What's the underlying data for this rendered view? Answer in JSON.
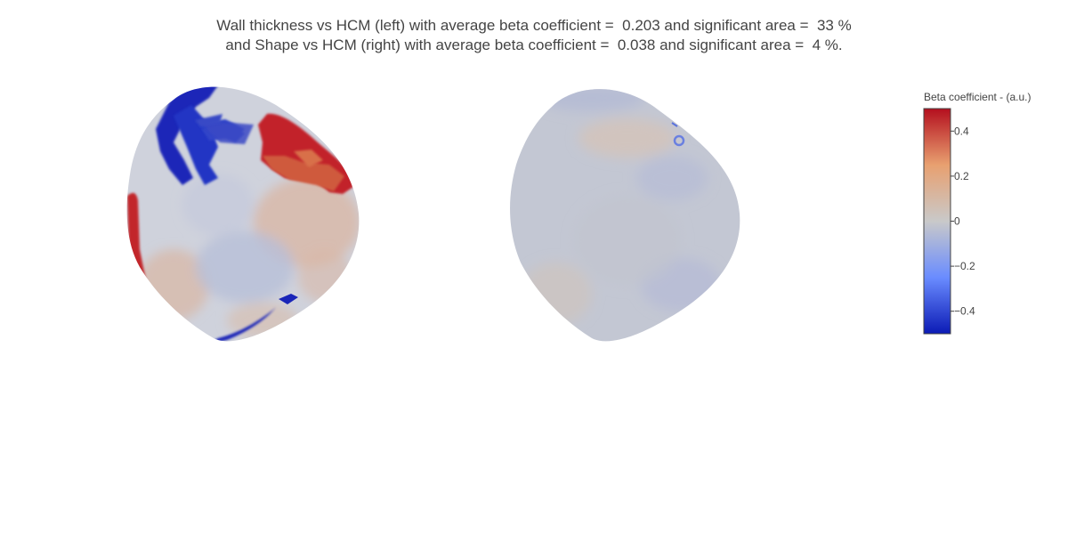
{
  "title": {
    "line1": "Wall thickness vs HCM (left) with average beta coefficient =  0.203 and significant area =  33 %",
    "line2": "and Shape vs HCM (right) with average beta coefficient =  0.038 and significant area =  4 %."
  },
  "chart_data": {
    "type": "heatmap",
    "panels": [
      {
        "name": "Wall thickness vs HCM",
        "position": "left",
        "average_beta": 0.203,
        "significant_area_percent": 33
      },
      {
        "name": "Shape vs HCM",
        "position": "right",
        "average_beta": 0.038,
        "significant_area_percent": 4
      }
    ],
    "colorbar": {
      "title": "Beta coefficient - (a.u.)",
      "range": [
        -0.5,
        0.5
      ],
      "ticks": [
        0.4,
        0.2,
        0,
        -0.2,
        -0.4
      ],
      "tick_labels": [
        "0.4",
        "0.2",
        "0",
        "−0.2",
        "−0.4"
      ],
      "colorscale": [
        "#0b1ab5",
        "#6a8cff",
        "#c9c9c9",
        "#e8a070",
        "#b40f1e"
      ]
    }
  }
}
